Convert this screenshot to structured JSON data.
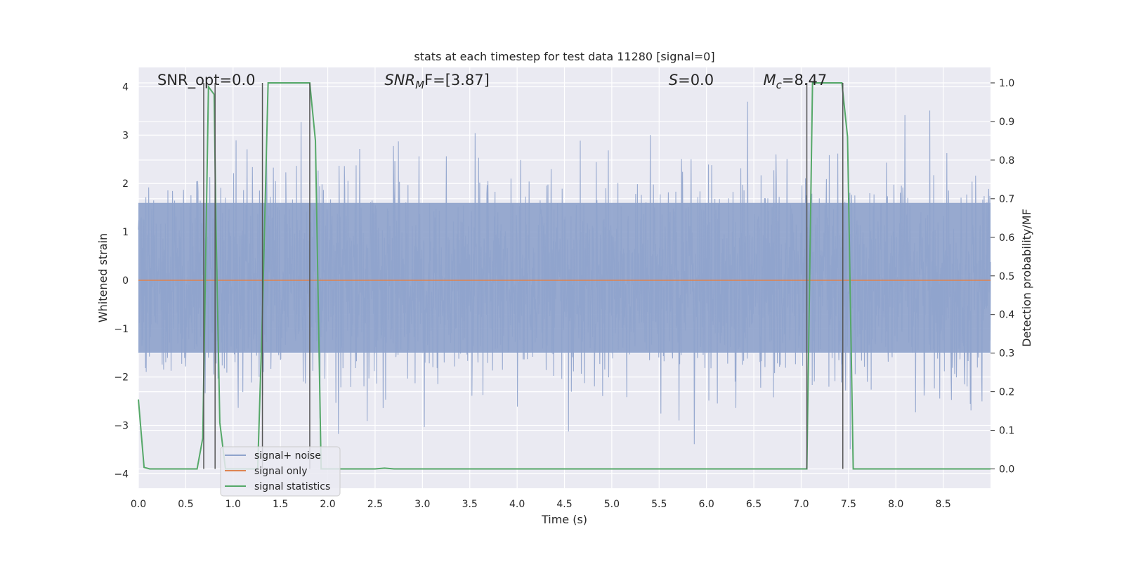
{
  "chart_data": {
    "type": "line",
    "title": "stats at each timestep for test data 11280 [signal=0]",
    "xlabel": "Time (s)",
    "ylabel": "Whitened strain",
    "ylabel_right": "Detection probability/MF",
    "xlim": [
      0.0,
      9.0
    ],
    "ylim": [
      -4.3,
      4.4
    ],
    "ylim_right": [
      -0.05,
      1.04
    ],
    "x_ticks": [
      0.0,
      0.5,
      1.0,
      1.5,
      2.0,
      2.5,
      3.0,
      3.5,
      4.0,
      4.5,
      5.0,
      5.5,
      6.0,
      6.5,
      7.0,
      7.5,
      8.0,
      8.5
    ],
    "x_tick_labels": [
      "0.0",
      "0.5",
      "1.0",
      "1.5",
      "2.0",
      "2.5",
      "3.0",
      "3.5",
      "4.0",
      "4.5",
      "5.0",
      "5.5",
      "6.0",
      "6.5",
      "7.0",
      "7.5",
      "8.0",
      "8.5"
    ],
    "y_ticks": [
      -4,
      -3,
      -2,
      -1,
      0,
      1,
      2,
      3,
      4
    ],
    "y_tick_labels": [
      "−4",
      "−3",
      "−2",
      "−1",
      "0",
      "1",
      "2",
      "3",
      "4"
    ],
    "y_right_ticks": [
      0.0,
      0.1,
      0.2,
      0.3,
      0.4,
      0.5,
      0.6,
      0.7,
      0.8,
      0.9,
      1.0
    ],
    "y_right_tick_labels": [
      "0.0",
      "0.1",
      "0.2",
      "0.3",
      "0.4",
      "0.5",
      "0.6",
      "0.7",
      "0.8",
      "0.9",
      "1.0"
    ],
    "grid": true,
    "legend_placement": "lower-left",
    "annotations": [
      {
        "id": "snr-opt",
        "text": "SNR_opt=0.0",
        "x": 0.2
      },
      {
        "id": "snr-mf",
        "text": "SNR",
        "sub": "M",
        "tail": "F=[3.87]",
        "italic_head": true,
        "x": 2.6
      },
      {
        "id": "s-value",
        "text": "S",
        "tail": "=0.0",
        "italic_head": true,
        "x": 5.6
      },
      {
        "id": "mc-value",
        "text": "M",
        "sub": "c",
        "tail": "=8.47",
        "italic_head": true,
        "x": 6.6
      }
    ],
    "series": [
      {
        "name": "signal+ noise",
        "color": "#8fa3cc",
        "kind": "noise",
        "envelope_core": [
          -1.5,
          1.6
        ],
        "spike_range": [
          -3.5,
          4.0
        ]
      },
      {
        "name": "signal only",
        "color": "#dd8452",
        "kind": "line",
        "x": [
          0.0,
          9.0
        ],
        "y": [
          0.0,
          0.0
        ]
      },
      {
        "name": "signal statistics",
        "color": "#55a868",
        "kind": "line",
        "axis": "right",
        "x": [
          0.0,
          0.06,
          0.12,
          0.62,
          0.68,
          0.74,
          0.8,
          0.82,
          0.86,
          0.92,
          1.26,
          1.31,
          1.37,
          1.42,
          1.81,
          1.87,
          1.93,
          2.0,
          2.5,
          2.6,
          2.7,
          7.0,
          7.06,
          7.12,
          7.43,
          7.49,
          7.55,
          9.0
        ],
        "y": [
          0.18,
          0.004,
          0.0,
          0.0,
          0.08,
          0.99,
          0.97,
          0.62,
          0.12,
          0.0,
          0.0,
          0.4,
          1.0,
          1.0,
          1.0,
          0.85,
          0.0,
          0.0,
          0.0,
          0.002,
          0.0,
          0.0,
          0.0,
          1.0,
          1.0,
          0.86,
          0.0,
          0.0
        ]
      }
    ],
    "vertical_markers": [
      0.69,
      0.81,
      1.31,
      1.81,
      7.06,
      7.44
    ]
  }
}
